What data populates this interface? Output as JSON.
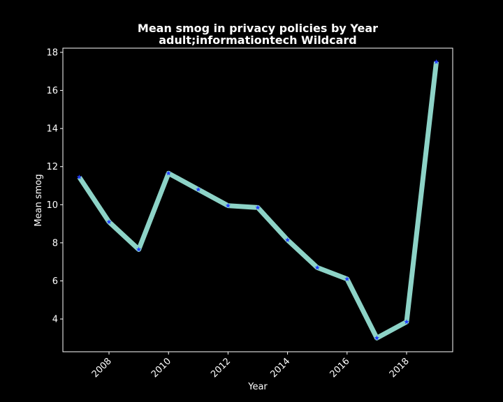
{
  "chart_data": {
    "type": "line",
    "title": "Mean smog in privacy policies by Year",
    "subtitle": "adult;informationtech Wildcard",
    "xlabel": "Year",
    "ylabel": "Mean smog",
    "xlim": [
      2006.45,
      2019.55
    ],
    "ylim": [
      2.28,
      18.22
    ],
    "x_ticks": [
      2008,
      2010,
      2012,
      2014,
      2016,
      2018
    ],
    "y_ticks": [
      4,
      6,
      8,
      10,
      12,
      14,
      16,
      18
    ],
    "grid": false,
    "legend": "none",
    "background_color": "#000000",
    "foreground_color": "#ffffff",
    "series": [
      {
        "line_color": "#8dd3c7",
        "marker_color": "#1f3cff",
        "marker": "star",
        "x": [
          2007,
          2008,
          2009,
          2010,
          2011,
          2012,
          2013,
          2014,
          2015,
          2016,
          2017,
          2018,
          2019
        ],
        "values": [
          11.45,
          9.1,
          7.65,
          11.65,
          10.8,
          9.95,
          9.85,
          8.15,
          6.7,
          6.1,
          3.0,
          3.85,
          17.5
        ]
      }
    ]
  }
}
